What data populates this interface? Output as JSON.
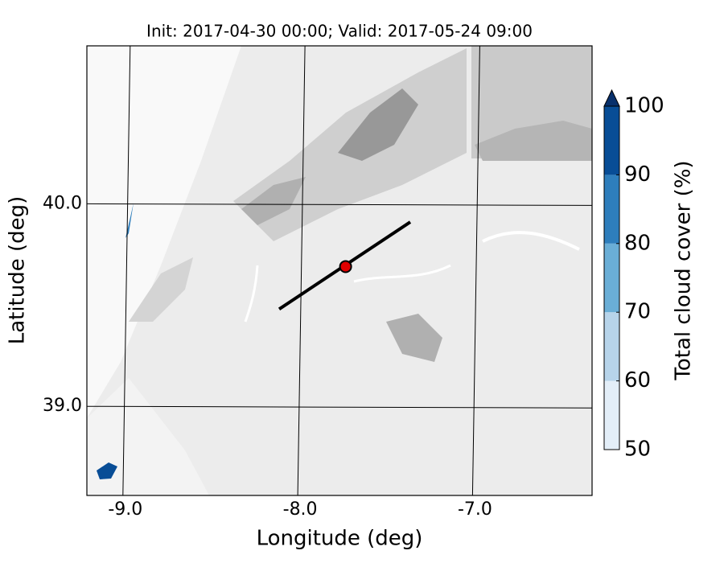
{
  "chart_data": {
    "type": "map",
    "title": "Init: 2017-04-30 00:00; Valid: 2017-05-24 09:00",
    "xlabel": "Longitude (deg)",
    "ylabel": "Latitude (deg)",
    "xlim": [
      -9.22,
      -6.33
    ],
    "ylim": [
      38.56,
      40.78
    ],
    "xticks": [
      {
        "value": -9,
        "label": "-9.0"
      },
      {
        "value": -8,
        "label": "-8.0"
      },
      {
        "value": -7,
        "label": "-7.0"
      }
    ],
    "yticks": [
      {
        "value": 39,
        "label": "39.0"
      },
      {
        "value": 40,
        "label": "40.0"
      }
    ],
    "grid": true,
    "transect": {
      "lon": [
        -8.12,
        -7.37
      ],
      "lat": [
        39.48,
        39.91
      ],
      "color": "#000000"
    },
    "point": {
      "lon": -7.74,
      "lat": 39.69,
      "color": "#e00000"
    },
    "colorbar": {
      "label": "Total cloud cover (%)",
      "bounds": [
        50,
        60,
        70,
        80,
        90,
        100
      ],
      "colors": [
        "#e3eef8",
        "#b7d4ea",
        "#6aaed6",
        "#2e7ebc",
        "#084d96"
      ],
      "extend_color": "#08306b",
      "ticks": [
        50,
        60,
        70,
        80,
        90,
        100
      ]
    }
  }
}
